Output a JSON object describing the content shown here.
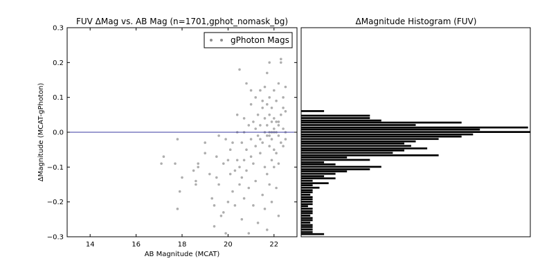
{
  "chart_data": [
    {
      "type": "scatter",
      "title": "FUV ΔMag vs. AB Mag (n=1701,gphot_nomask_bg)",
      "xlabel": "AB Magnitude (MCAT)",
      "ylabel": "ΔMagnitude (MCAT-gPhoton)",
      "xlim": [
        13,
        23
      ],
      "ylim": [
        -0.3,
        0.3
      ],
      "xticks": [
        "14",
        "16",
        "18",
        "20",
        "22"
      ],
      "xtick_values": [
        14,
        16,
        18,
        20,
        22
      ],
      "yticks": [
        "−0.3",
        "−0.2",
        "−0.1",
        "0.0",
        "0.1",
        "0.2",
        "0.3"
      ],
      "ytick_values": [
        -0.3,
        -0.2,
        -0.1,
        0.0,
        0.1,
        0.2,
        0.3
      ],
      "grid": false,
      "legend": {
        "position": "top-right",
        "entries": [
          "gPhoton Mags"
        ]
      },
      "reference_line": {
        "y": 0.0,
        "color": "#3a3aa0"
      },
      "marker_color": "#8c8c8c",
      "series": [
        {
          "name": "gPhoton Mags",
          "points": [
            [
              17.1,
              -0.09
            ],
            [
              17.2,
              -0.07
            ],
            [
              17.8,
              -0.02
            ],
            [
              17.7,
              -0.09
            ],
            [
              17.8,
              -0.22
            ],
            [
              17.9,
              -0.17
            ],
            [
              18.0,
              -0.13
            ],
            [
              18.5,
              -0.11
            ],
            [
              18.6,
              -0.14
            ],
            [
              18.6,
              -0.15
            ],
            [
              18.7,
              -0.09
            ],
            [
              18.7,
              -0.1
            ],
            [
              19.0,
              -0.06
            ],
            [
              19.0,
              -0.03
            ],
            [
              19.2,
              -0.12
            ],
            [
              19.3,
              -0.19
            ],
            [
              19.4,
              -0.21
            ],
            [
              19.4,
              -0.27
            ],
            [
              19.5,
              -0.07
            ],
            [
              19.5,
              -0.13
            ],
            [
              19.6,
              -0.01
            ],
            [
              19.6,
              -0.15
            ],
            [
              19.7,
              -0.24
            ],
            [
              19.8,
              -0.09
            ],
            [
              19.8,
              -0.23
            ],
            [
              19.9,
              -0.02
            ],
            [
              19.9,
              -0.29
            ],
            [
              20.0,
              -0.2
            ],
            [
              20.0,
              -0.08
            ],
            [
              20.1,
              -0.05
            ],
            [
              20.1,
              -0.12
            ],
            [
              20.2,
              -0.17
            ],
            [
              20.2,
              -0.03
            ],
            [
              20.3,
              -0.11
            ],
            [
              20.3,
              -0.21
            ],
            [
              20.4,
              0.0
            ],
            [
              20.4,
              -0.08
            ],
            [
              20.4,
              0.05
            ],
            [
              20.5,
              -0.15
            ],
            [
              20.5,
              -0.1
            ],
            [
              20.5,
              0.18
            ],
            [
              20.6,
              -0.03
            ],
            [
              20.6,
              -0.13
            ],
            [
              20.6,
              -0.25
            ],
            [
              20.7,
              0.0
            ],
            [
              20.7,
              -0.08
            ],
            [
              20.7,
              0.04
            ],
            [
              20.7,
              -0.19
            ],
            [
              20.8,
              0.14
            ],
            [
              20.8,
              -0.05
            ],
            [
              20.8,
              -0.11
            ],
            [
              20.9,
              0.02
            ],
            [
              20.9,
              -0.29
            ],
            [
              20.9,
              -0.16
            ],
            [
              21.0,
              0.12
            ],
            [
              21.0,
              -0.02
            ],
            [
              21.0,
              0.08
            ],
            [
              21.0,
              -0.07
            ],
            [
              21.1,
              0.03
            ],
            [
              21.1,
              -0.09
            ],
            [
              21.1,
              -0.21
            ],
            [
              21.2,
              0.01
            ],
            [
              21.2,
              0.1
            ],
            [
              21.2,
              -0.04
            ],
            [
              21.2,
              -0.14
            ],
            [
              21.3,
              0.05
            ],
            [
              21.3,
              -0.01
            ],
            [
              21.3,
              -0.26
            ],
            [
              21.4,
              0.12
            ],
            [
              21.4,
              -0.02
            ],
            [
              21.4,
              -0.06
            ],
            [
              21.4,
              0.02
            ],
            [
              21.5,
              0.07
            ],
            [
              21.5,
              -0.03
            ],
            [
              21.5,
              -0.18
            ],
            [
              21.5,
              0.09
            ],
            [
              21.6,
              0.0
            ],
            [
              21.6,
              0.13
            ],
            [
              21.6,
              -0.1
            ],
            [
              21.6,
              -0.22
            ],
            [
              21.6,
              0.04
            ],
            [
              21.7,
              0.02
            ],
            [
              21.7,
              0.08
            ],
            [
              21.7,
              -0.01
            ],
            [
              21.7,
              -0.12
            ],
            [
              21.7,
              0.17
            ],
            [
              21.7,
              -0.28
            ],
            [
              21.8,
              0.05
            ],
            [
              21.8,
              0.0
            ],
            [
              21.8,
              0.1
            ],
            [
              21.8,
              -0.04
            ],
            [
              21.8,
              -0.15
            ],
            [
              21.8,
              0.2
            ],
            [
              21.9,
              0.03
            ],
            [
              21.9,
              -0.02
            ],
            [
              21.9,
              0.07
            ],
            [
              21.9,
              -0.08
            ],
            [
              21.9,
              -0.2
            ],
            [
              22.0,
              0.01
            ],
            [
              22.0,
              0.12
            ],
            [
              22.0,
              -0.05
            ],
            [
              22.0,
              0.04
            ],
            [
              22.0,
              -0.1
            ],
            [
              22.1,
              0.03
            ],
            [
              22.1,
              0.0
            ],
            [
              22.1,
              0.09
            ],
            [
              22.1,
              -0.06
            ],
            [
              22.1,
              -0.16
            ],
            [
              22.2,
              0.02
            ],
            [
              22.2,
              0.14
            ],
            [
              22.2,
              -0.01
            ],
            [
              22.2,
              -0.09
            ],
            [
              22.2,
              -0.24
            ],
            [
              22.3,
              0.21
            ],
            [
              22.3,
              0.05
            ],
            [
              22.3,
              -0.03
            ],
            [
              22.3,
              0.2
            ],
            [
              22.4,
              0.1
            ],
            [
              22.4,
              0.01
            ],
            [
              22.4,
              -0.04
            ],
            [
              22.4,
              0.07
            ],
            [
              22.5,
              0.13
            ],
            [
              22.5,
              0.0
            ],
            [
              22.5,
              -0.02
            ],
            [
              22.5,
              0.06
            ],
            [
              22.2,
              0.03
            ],
            [
              22.0,
              0.0
            ],
            [
              21.9,
              0.0
            ],
            [
              21.8,
              -0.01
            ]
          ]
        }
      ]
    },
    {
      "type": "bar",
      "orientation": "horizontal",
      "title": "ΔMagnitude Histogram (FUV)",
      "ylim": [
        -0.3,
        0.3
      ],
      "bar_color": "#000000",
      "bins": [
        [
          0.06,
          0.1
        ],
        [
          0.047,
          0.3
        ],
        [
          0.04,
          0.3
        ],
        [
          0.033,
          0.35
        ],
        [
          0.027,
          0.7
        ],
        [
          0.02,
          0.5
        ],
        [
          0.013,
          0.99
        ],
        [
          0.007,
          0.78
        ],
        [
          0.0,
          1.0
        ],
        [
          -0.007,
          0.75
        ],
        [
          -0.013,
          0.7
        ],
        [
          -0.02,
          0.6
        ],
        [
          -0.027,
          0.5
        ],
        [
          -0.033,
          0.45
        ],
        [
          -0.04,
          0.48
        ],
        [
          -0.047,
          0.55
        ],
        [
          -0.053,
          0.45
        ],
        [
          -0.06,
          0.4
        ],
        [
          -0.067,
          0.6
        ],
        [
          -0.073,
          0.2
        ],
        [
          -0.08,
          0.3
        ],
        [
          -0.087,
          0.1
        ],
        [
          -0.093,
          0.15
        ],
        [
          -0.1,
          0.35
        ],
        [
          -0.107,
          0.3
        ],
        [
          -0.113,
          0.2
        ],
        [
          -0.12,
          0.15
        ],
        [
          -0.127,
          0.1
        ],
        [
          -0.133,
          0.15
        ],
        [
          -0.14,
          0.05
        ],
        [
          -0.147,
          0.12
        ],
        [
          -0.153,
          0.05
        ],
        [
          -0.16,
          0.08
        ],
        [
          -0.167,
          0.05
        ],
        [
          -0.173,
          0.05
        ],
        [
          -0.18,
          0.04
        ],
        [
          -0.187,
          0.05
        ],
        [
          -0.193,
          0.05
        ],
        [
          -0.2,
          0.05
        ],
        [
          -0.207,
          0.05
        ],
        [
          -0.213,
          0.03
        ],
        [
          -0.22,
          0.05
        ],
        [
          -0.227,
          0.05
        ],
        [
          -0.233,
          0.05
        ],
        [
          -0.24,
          0.04
        ],
        [
          -0.247,
          0.05
        ],
        [
          -0.253,
          0.05
        ],
        [
          -0.26,
          0.04
        ],
        [
          -0.267,
          0.05
        ],
        [
          -0.273,
          0.05
        ],
        [
          -0.28,
          0.05
        ],
        [
          -0.287,
          0.05
        ],
        [
          -0.293,
          0.1
        ]
      ]
    }
  ]
}
